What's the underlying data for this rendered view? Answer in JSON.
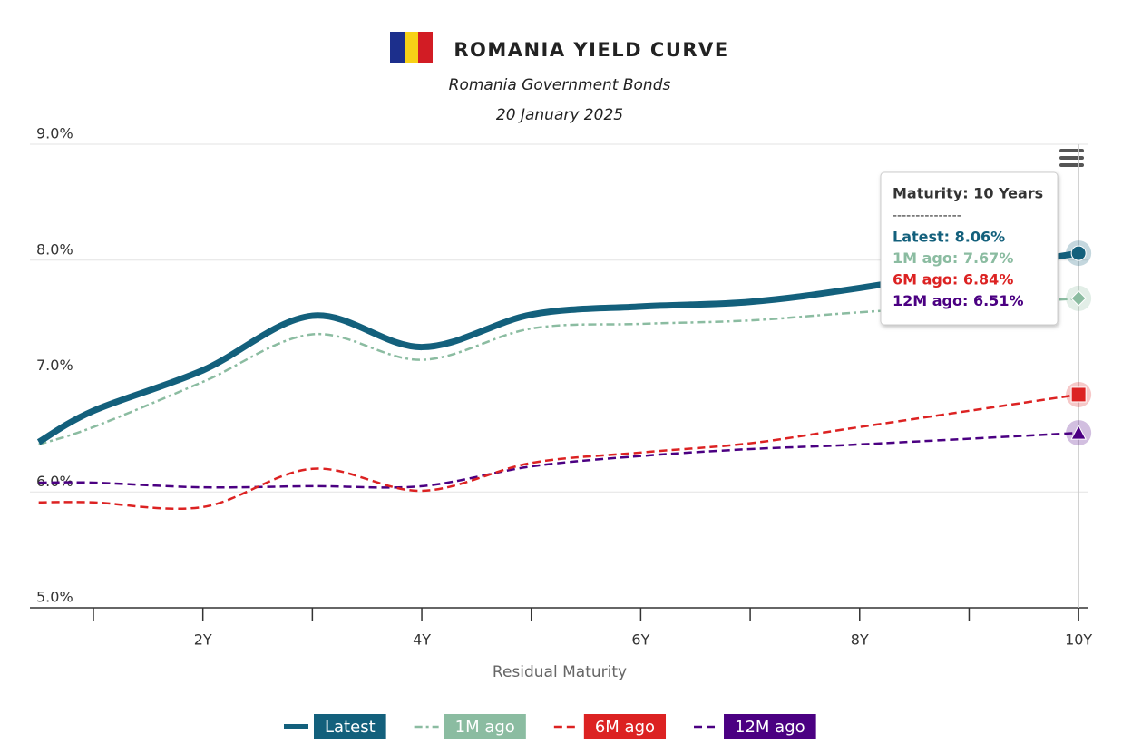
{
  "chart_data": {
    "type": "line",
    "title": "ROMANIA YIELD CURVE",
    "subtitle": "Romania Government Bonds",
    "date": "20 January 2025",
    "x_label": "Residual Maturity",
    "x": [
      0.5,
      1,
      2,
      3,
      4,
      5,
      6,
      7,
      8,
      10
    ],
    "xlim": [
      0.42,
      10.09
    ],
    "xticks": [
      1,
      {
        "value": 2,
        "label": "2Y"
      },
      3,
      {
        "value": 4,
        "label": "4Y"
      },
      5,
      {
        "value": 6,
        "label": "6Y"
      },
      7,
      {
        "value": 8,
        "label": "8Y"
      },
      9,
      {
        "value": 10,
        "label": "10Y"
      }
    ],
    "ylim": [
      5,
      9
    ],
    "yticks": [
      {
        "value": 5,
        "label": "5.0%"
      },
      {
        "value": 6,
        "label": "6.0%"
      },
      {
        "value": 7,
        "label": "7.0%"
      },
      {
        "value": 8,
        "label": "8.0%"
      },
      {
        "value": 9,
        "label": "9.0%"
      }
    ],
    "grid": true,
    "legend": "bottom",
    "series": [
      {
        "name": "Latest",
        "color": "#13607c",
        "dash": "solid",
        "symbol": "circle",
        "values": [
          6.43,
          6.7,
          7.05,
          7.52,
          7.25,
          7.53,
          7.6,
          7.64,
          7.76,
          8.06
        ]
      },
      {
        "name": "1M ago",
        "color": "#8bbca1",
        "dash": "dashdot",
        "symbol": "diamond",
        "values": [
          6.41,
          6.56,
          6.95,
          7.36,
          7.14,
          7.41,
          7.45,
          7.48,
          7.55,
          7.67
        ]
      },
      {
        "name": "6M ago",
        "color": "#dc2222",
        "dash": "dash",
        "symbol": "square",
        "values": [
          5.91,
          5.91,
          5.87,
          6.2,
          6.01,
          6.25,
          6.34,
          6.42,
          6.56,
          6.84
        ]
      },
      {
        "name": "12M ago",
        "color": "#4b0082",
        "dash": "dash",
        "symbol": "triangle",
        "values": [
          6.08,
          6.08,
          6.04,
          6.05,
          6.05,
          6.22,
          6.31,
          6.37,
          6.41,
          6.51
        ]
      }
    ],
    "tooltip": {
      "title": "Maturity: 10 Years",
      "separator": "---------------",
      "lines": [
        "Latest: 8.06%",
        "1M ago: 7.67%",
        "6M ago: 6.84%",
        "12M ago: 6.51%"
      ]
    }
  }
}
